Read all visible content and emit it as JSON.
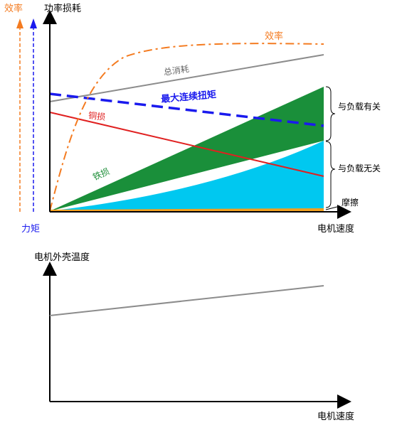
{
  "top_chart": {
    "y_axis_label": "功率损耗",
    "x_axis_label": "电机速度",
    "left_axis_efficiency": "效率",
    "left_axis_torque": "力矩",
    "curve_efficiency": "效率",
    "curve_total_loss": "总消耗",
    "curve_max_torque": "最大连续扭矩",
    "curve_copper_loss": "铜损",
    "region_iron_loss": "铁损",
    "brace_load_dependent": "与负载有关",
    "brace_load_independent": "与负载无关",
    "region_friction": "摩擦"
  },
  "bottom_chart": {
    "y_axis_label": "电机外壳温度",
    "x_axis_label": "电机速度"
  },
  "colors": {
    "efficiency": "#f47b20",
    "torque": "#1a1aee",
    "copper_loss": "#e02020",
    "total_loss": "#8c8c8c",
    "load_dependent_fill": "#1a8f3a",
    "load_independent_fill": "#00c8f0",
    "friction_fill": "#f0a020",
    "axis": "#000000"
  }
}
